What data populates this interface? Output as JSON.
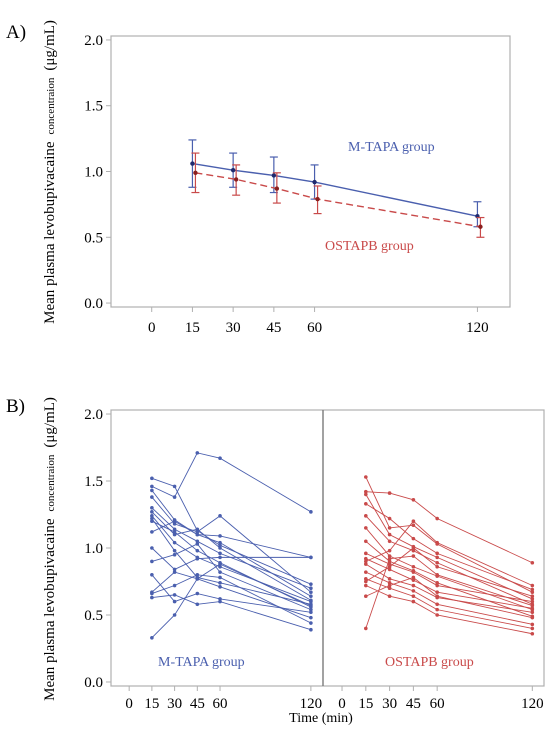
{
  "colors": {
    "mtapa": "#4a5fae",
    "ostapb": "#c94a4a",
    "frame": "#b0b0b0"
  },
  "chart_data": [
    {
      "panel": "A)",
      "type": "line",
      "ylabel_main": "Mean plasma levobupivacaine",
      "ylabel_small": "concentraion",
      "ylabel_unit": "(μg/mL)",
      "xlabel": "",
      "x_ticks": [
        0,
        15,
        30,
        45,
        60,
        120
      ],
      "y_ticks": [
        "0.0",
        "0.5",
        "1.0",
        "1.5",
        "2.0"
      ],
      "xlim": [
        -15,
        132
      ],
      "ylim": [
        -0.03,
        2.03
      ],
      "x": [
        15,
        30,
        45,
        60,
        120
      ],
      "series": [
        {
          "name": "M-TAPA group",
          "key": "mtapa",
          "values": [
            1.06,
            1.01,
            0.97,
            0.92,
            0.66
          ],
          "lower": [
            0.88,
            0.88,
            0.84,
            0.79,
            0.58
          ],
          "upper": [
            1.24,
            1.14,
            1.11,
            1.05,
            0.77
          ]
        },
        {
          "name": "OSTAPB group",
          "key": "ostapb",
          "values": [
            0.99,
            0.94,
            0.87,
            0.79,
            0.58
          ],
          "lower": [
            0.84,
            0.82,
            0.76,
            0.68,
            0.5
          ],
          "upper": [
            1.14,
            1.05,
            0.99,
            0.89,
            0.65
          ]
        }
      ]
    },
    {
      "panel": "B)",
      "type": "line",
      "ylabel_main": "Mean plasma levobupivacaine",
      "ylabel_small": "concentraion",
      "ylabel_unit": "(μg/mL)",
      "xlabel": "Time (min)",
      "x_ticks": [
        0,
        15,
        30,
        45,
        60,
        120
      ],
      "y_ticks": [
        "0.0",
        "0.5",
        "1.0",
        "1.5",
        "2.0"
      ],
      "xlim": [
        -12,
        128
      ],
      "ylim": [
        -0.03,
        2.03
      ],
      "x": [
        15,
        30,
        45,
        60,
        120
      ],
      "facets": [
        {
          "name": "M-TAPA group",
          "key": "mtapa",
          "subjects": [
            [
              1.52,
              1.46,
              1.13,
              1.02,
              0.73
            ],
            [
              1.46,
              1.38,
              1.71,
              1.67,
              1.27
            ],
            [
              1.43,
              1.21,
              1.1,
              1.09,
              0.93
            ],
            [
              1.38,
              1.18,
              1.12,
              1.24,
              0.67
            ],
            [
              1.3,
              1.14,
              1.05,
              0.96,
              0.7
            ],
            [
              1.27,
              1.1,
              1.14,
              1.0,
              0.61
            ],
            [
              1.24,
              1.04,
              0.93,
              0.86,
              0.6
            ],
            [
              1.22,
              0.98,
              0.78,
              0.74,
              0.58
            ],
            [
              1.2,
              1.12,
              0.98,
              0.89,
              0.56
            ],
            [
              1.12,
              1.2,
              1.1,
              1.04,
              0.64
            ],
            [
              1.0,
              0.84,
              0.92,
              0.93,
              0.93
            ],
            [
              0.9,
              0.95,
              1.03,
              0.82,
              0.54
            ],
            [
              0.8,
              0.6,
              0.66,
              0.62,
              0.52
            ],
            [
              0.67,
              0.82,
              0.77,
              0.71,
              0.48
            ],
            [
              0.66,
              0.72,
              0.8,
              0.78,
              0.44
            ],
            [
              0.63,
              0.65,
              0.58,
              0.6,
              0.39
            ],
            [
              0.33,
              0.5,
              0.77,
              0.88,
              0.57
            ]
          ]
        },
        {
          "name": "OSTAPB group",
          "key": "ostapb",
          "subjects": [
            [
              1.53,
              1.15,
              1.17,
              1.03,
              0.67
            ],
            [
              1.42,
              1.41,
              1.36,
              1.22,
              0.89
            ],
            [
              1.4,
              1.1,
              1.01,
              0.93,
              0.62
            ],
            [
              1.33,
              1.22,
              1.07,
              0.96,
              0.69
            ],
            [
              1.24,
              1.05,
              0.98,
              0.89,
              0.58
            ],
            [
              1.15,
              0.94,
              0.86,
              0.79,
              0.54
            ],
            [
              1.05,
              0.9,
              0.83,
              0.74,
              0.49
            ],
            [
              0.96,
              0.88,
              0.82,
              0.72,
              0.6
            ],
            [
              0.92,
              0.84,
              0.76,
              0.67,
              0.55
            ],
            [
              0.88,
              0.77,
              0.72,
              0.63,
              0.52
            ],
            [
              0.82,
              0.74,
              0.68,
              0.58,
              0.43
            ],
            [
              0.77,
              0.7,
              0.64,
              0.54,
              0.4
            ],
            [
              0.72,
              0.64,
              0.6,
              0.5,
              0.36
            ],
            [
              0.64,
              0.72,
              0.78,
              0.64,
              0.48
            ],
            [
              0.4,
              0.92,
              0.94,
              0.8,
              0.57
            ],
            [
              0.9,
              0.98,
              1.2,
              1.04,
              0.72
            ],
            [
              0.75,
              0.86,
              1.0,
              0.86,
              0.64
            ]
          ]
        }
      ]
    }
  ]
}
